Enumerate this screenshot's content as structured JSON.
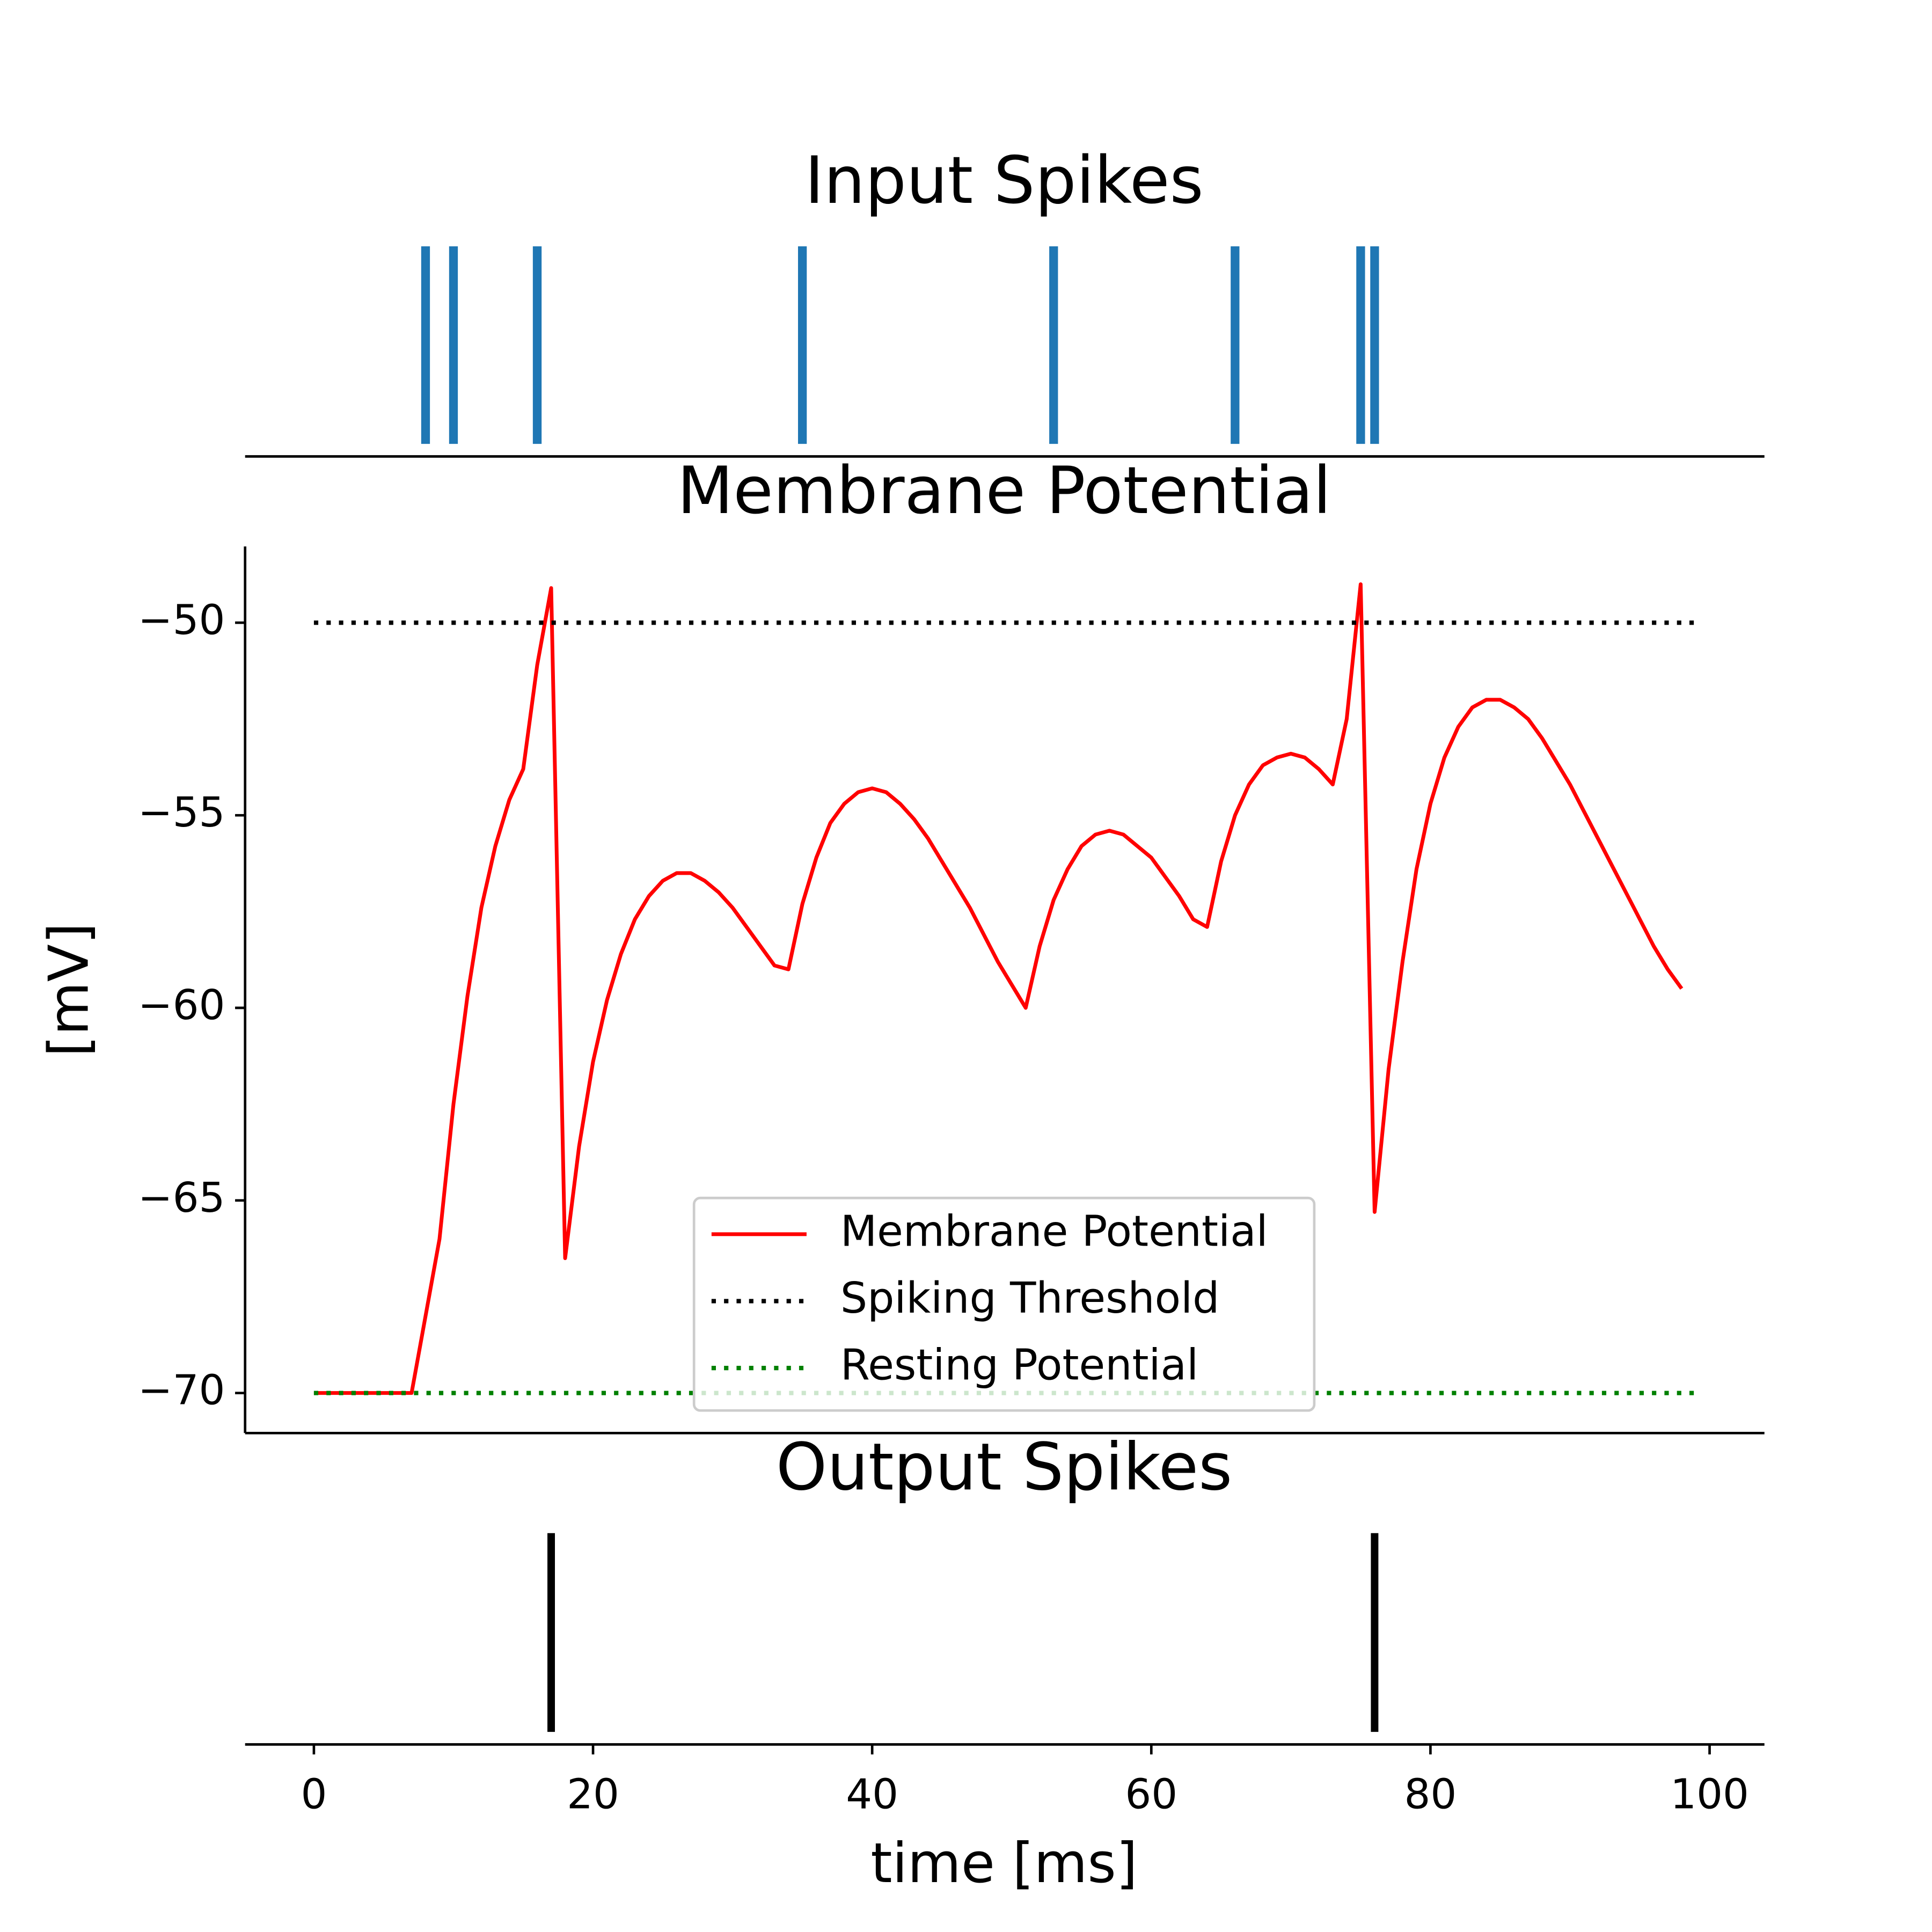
{
  "chart_data": [
    {
      "type": "event",
      "title": "Input Spikes",
      "color": "#1f77b4",
      "values": [
        8,
        10,
        16,
        35,
        53,
        66,
        75,
        76
      ],
      "xlim": [
        -4.93,
        103.93
      ]
    },
    {
      "type": "line",
      "title": "Membrane Potential",
      "ylabel": "[mV]",
      "legend": "lower center",
      "xlim": [
        -4.93,
        103.93
      ],
      "ylim": [
        -71.04,
        -48.02
      ],
      "yticks": [
        {
          "value": -50,
          "label": "−50"
        },
        {
          "value": -55,
          "label": "−55"
        },
        {
          "value": -60,
          "label": "−60"
        },
        {
          "value": -65,
          "label": "−65"
        },
        {
          "value": -70,
          "label": "−70"
        }
      ],
      "series": [
        {
          "name": "Membrane Potential",
          "color": "#ff0000",
          "linestyle": "solid",
          "x": [
            0,
            1,
            2,
            3,
            4,
            5,
            6,
            7,
            8,
            9,
            10,
            11,
            12,
            13,
            14,
            15,
            16,
            17,
            18,
            19,
            20,
            21,
            22,
            23,
            24,
            25,
            26,
            27,
            28,
            29,
            30,
            31,
            32,
            33,
            34,
            35,
            36,
            37,
            38,
            39,
            40,
            41,
            42,
            43,
            44,
            45,
            46,
            47,
            48,
            49,
            50,
            51,
            52,
            53,
            54,
            55,
            56,
            57,
            58,
            59,
            60,
            61,
            62,
            63,
            64,
            65,
            66,
            67,
            68,
            69,
            70,
            71,
            72,
            73,
            74,
            75,
            76,
            77,
            78,
            79,
            80,
            81,
            82,
            83,
            84,
            85,
            86,
            87,
            88,
            89,
            90,
            91,
            92,
            93,
            94,
            95,
            96,
            97,
            98
          ],
          "values": [
            -70,
            -70,
            -70,
            -70,
            -70,
            -70,
            -70,
            -70,
            -68,
            -66,
            -62.5,
            -59.7,
            -57.4,
            -55.8,
            -54.6,
            -53.8,
            -51.1,
            -49.1,
            -66.5,
            -63.6,
            -61.4,
            -59.8,
            -58.6,
            -57.7,
            -57.1,
            -56.7,
            -56.5,
            -56.5,
            -56.7,
            -57.0,
            -57.4,
            -57.9,
            -58.4,
            -58.9,
            -59.0,
            -57.3,
            -56.1,
            -55.2,
            -54.7,
            -54.4,
            -54.3,
            -54.4,
            -54.7,
            -55.1,
            -55.6,
            -56.2,
            -56.8,
            -57.4,
            -58.1,
            -58.8,
            -59.4,
            -60.0,
            -58.4,
            -57.2,
            -56.4,
            -55.8,
            -55.5,
            -55.4,
            -55.5,
            -55.8,
            -56.1,
            -56.6,
            -57.1,
            -57.7,
            -57.9,
            -56.2,
            -55.0,
            -54.2,
            -53.7,
            -53.5,
            -53.4,
            -53.5,
            -53.8,
            -54.2,
            -52.5,
            -49.0,
            -65.3,
            -61.6,
            -58.8,
            -56.4,
            -54.7,
            -53.5,
            -52.7,
            -52.2,
            -52.0,
            -52.0,
            -52.2,
            -52.5,
            -53.0,
            -53.6,
            -54.2,
            -54.9,
            -55.6,
            -56.3,
            -57.0,
            -57.7,
            -58.4,
            -59.0,
            -59.5
          ]
        },
        {
          "name": "Spiking Threshold",
          "color": "#000000",
          "linestyle": "dotted",
          "x": [
            0,
            98.9
          ],
          "values": [
            -50,
            -50
          ]
        },
        {
          "name": "Resting Potential",
          "color": "#008000",
          "linestyle": "dotted",
          "x": [
            0,
            98.9
          ],
          "values": [
            -70,
            -70
          ]
        }
      ]
    },
    {
      "type": "event",
      "title": "Output Spikes",
      "color": "#000000",
      "xlabel": "time [ms]",
      "values": [
        17,
        76
      ],
      "xlim": [
        -4.93,
        103.93
      ],
      "xticks": [
        0,
        20,
        40,
        60,
        80,
        100
      ]
    }
  ]
}
